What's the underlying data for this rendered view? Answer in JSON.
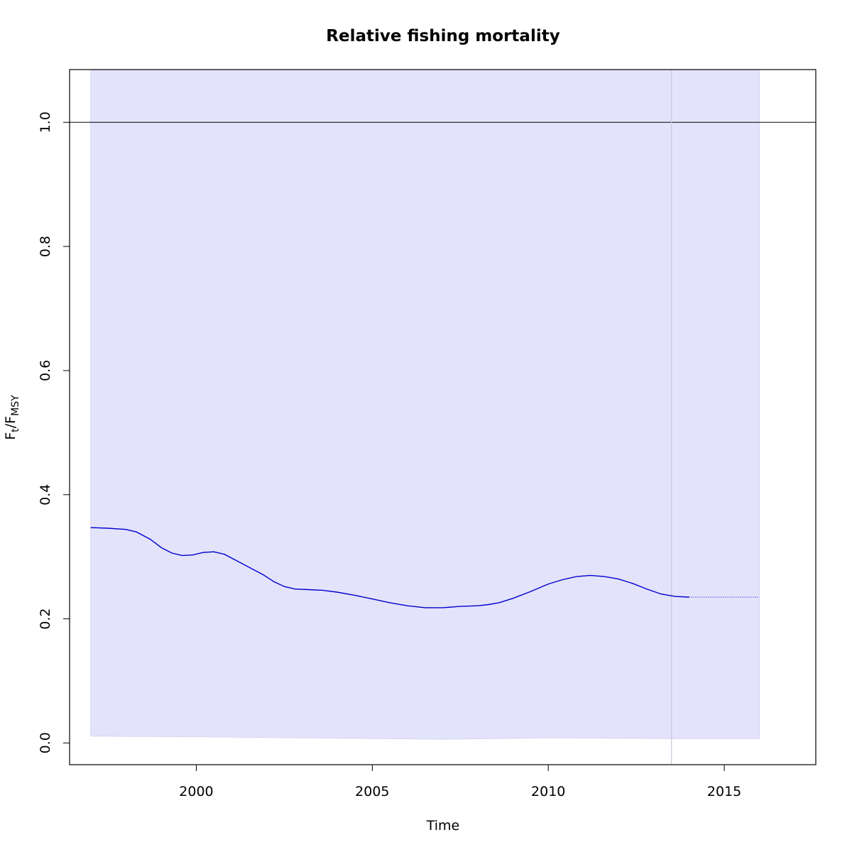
{
  "chart_data": {
    "type": "line",
    "title": "Relative fishing mortality",
    "xlabel": "Time",
    "ylabel": {
      "main_1": "F",
      "sub_1": "t",
      "slash": "/",
      "main_2": "F",
      "sub_2": "MSY"
    },
    "xlim": [
      1996.4,
      2017.6
    ],
    "ylim": [
      -0.035,
      1.085
    ],
    "x_ticks": [
      2000,
      2005,
      2010,
      2015
    ],
    "x_tick_labels": [
      "2000",
      "2005",
      "2010",
      "2015"
    ],
    "y_ticks": [
      0.0,
      0.2,
      0.4,
      0.6,
      0.8,
      1.0
    ],
    "y_tick_labels": [
      "0.0",
      "0.2",
      "0.4",
      "0.6",
      "0.8",
      "1.0"
    ],
    "reference_line": {
      "y": 1.0,
      "color": "#000000"
    },
    "vertical_marker": {
      "x": 2013.5,
      "color": "#c8c8dc"
    },
    "confidence_band": {
      "color": "#e3e3fc",
      "x": [
        1997.0,
        2000.0,
        2003.0,
        2007.0,
        2010.0,
        2013.5,
        2016.0
      ],
      "lower": [
        0.011,
        0.01,
        0.008,
        0.006,
        0.008,
        0.007,
        0.007
      ],
      "upper": [
        1.085,
        1.085,
        1.085,
        1.085,
        1.085,
        1.085,
        1.085
      ]
    },
    "series": [
      {
        "color": "#0000cc",
        "style": "solid",
        "x": [
          1997.0,
          1997.5,
          1998.0,
          1998.3,
          1998.7,
          1999.0,
          1999.3,
          1999.6,
          1999.9,
          2000.2,
          2000.5,
          2000.8,
          2001.1,
          2001.5,
          2001.9,
          2002.2,
          2002.5,
          2002.8,
          2003.2,
          2003.6,
          2004.0,
          2004.5,
          2005.0,
          2005.5,
          2006.0,
          2006.5,
          2007.0,
          2007.5,
          2008.0,
          2008.3,
          2008.6,
          2009.0,
          2009.5,
          2010.0,
          2010.4,
          2010.8,
          2011.2,
          2011.6,
          2012.0,
          2012.4,
          2012.8,
          2013.2,
          2013.6,
          2014.0
        ],
        "y": [
          0.347,
          0.346,
          0.344,
          0.34,
          0.328,
          0.315,
          0.306,
          0.302,
          0.303,
          0.307,
          0.308,
          0.304,
          0.295,
          0.283,
          0.271,
          0.26,
          0.252,
          0.248,
          0.247,
          0.246,
          0.243,
          0.238,
          0.232,
          0.226,
          0.221,
          0.218,
          0.218,
          0.22,
          0.221,
          0.223,
          0.226,
          0.233,
          0.244,
          0.256,
          0.263,
          0.268,
          0.27,
          0.268,
          0.264,
          0.257,
          0.248,
          0.24,
          0.236,
          0.235
        ]
      },
      {
        "color": "#0000cc",
        "style": "dotted",
        "x": [
          2014.0,
          2016.0
        ],
        "y": [
          0.235,
          0.235
        ]
      }
    ],
    "grid": false,
    "legend": "none"
  }
}
